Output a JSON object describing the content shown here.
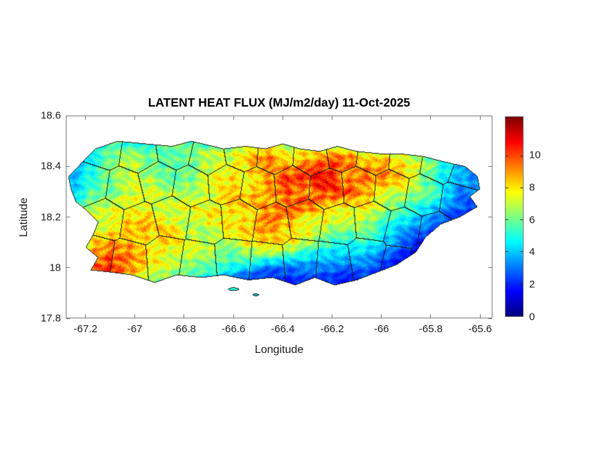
{
  "chart_data": {
    "type": "heatmap",
    "title": "LATENT HEAT FLUX (MJ/m2/day) 11-Oct-2025",
    "xlabel": "Longitude",
    "ylabel": "Latitude",
    "xlim": [
      -67.28,
      -65.55
    ],
    "ylim": [
      17.8,
      18.6
    ],
    "x_ticks": [
      -67.2,
      -67.0,
      -66.8,
      -66.6,
      -66.4,
      -66.2,
      -66.0,
      -65.8,
      -65.6
    ],
    "x_tick_labels": [
      "-67.2",
      "-67",
      "-66.8",
      "-66.6",
      "-66.4",
      "-66.2",
      "-66",
      "-65.8",
      "-65.6"
    ],
    "y_ticks": [
      18.6,
      18.4,
      18.2,
      18.0,
      17.8
    ],
    "y_tick_labels": [
      "18.6",
      "18.4",
      "18.2",
      "18",
      "17.8"
    ],
    "colormap": "jet",
    "colorbar": {
      "range": [
        0,
        12.4
      ],
      "ticks": [
        0,
        2,
        4,
        6,
        8,
        10
      ],
      "tick_labels": [
        "0",
        "2",
        "4",
        "6",
        "8",
        "10"
      ]
    },
    "grid": {
      "lon_min": -67.25,
      "lon_max": -65.6,
      "lat_min": 17.95,
      "lat_max": 18.5,
      "ncols": 22,
      "nrows": 12,
      "values": [
        [
          4,
          5,
          5,
          5,
          5,
          6,
          5,
          5,
          6,
          6,
          6,
          6,
          6,
          5,
          5,
          5,
          5,
          5,
          4,
          4,
          4,
          4
        ],
        [
          4,
          5,
          6,
          6,
          6,
          6,
          6,
          7,
          7,
          8,
          9,
          8,
          8,
          8,
          9,
          8,
          8,
          7,
          6,
          5,
          4,
          3
        ],
        [
          4,
          5,
          6,
          7,
          6,
          6,
          6,
          7,
          7,
          8,
          10,
          9,
          9,
          10,
          10,
          9,
          9,
          8,
          7,
          5,
          4,
          3
        ],
        [
          4,
          5,
          6,
          7,
          7,
          6,
          6,
          7,
          8,
          8,
          9,
          10,
          10,
          11,
          9,
          10,
          9,
          8,
          6,
          5,
          4,
          3
        ],
        [
          4,
          6,
          6,
          7,
          7,
          7,
          7,
          7,
          8,
          8,
          9,
          10,
          9,
          10,
          10,
          9,
          8,
          7,
          6,
          5,
          3,
          4
        ],
        [
          5,
          6,
          7,
          8,
          7,
          7,
          8,
          7,
          8,
          9,
          9,
          9,
          10,
          9,
          8,
          8,
          7,
          6,
          5,
          4,
          3,
          2
        ],
        [
          6,
          7,
          8,
          8,
          8,
          7,
          7,
          8,
          8,
          8,
          9,
          9,
          8,
          8,
          7,
          7,
          6,
          5,
          4,
          3,
          2,
          2
        ],
        [
          5,
          7,
          8,
          9,
          8,
          8,
          7,
          7,
          8,
          8,
          9,
          8,
          8,
          7,
          6,
          6,
          5,
          4,
          3,
          2,
          2,
          2
        ],
        [
          6,
          8,
          9,
          9,
          8,
          8,
          7,
          7,
          7,
          8,
          8,
          8,
          7,
          6,
          5,
          5,
          4,
          3,
          2,
          1,
          1,
          2
        ],
        [
          7,
          9,
          10,
          9,
          8,
          7,
          7,
          7,
          6,
          6,
          6,
          6,
          5,
          4,
          4,
          4,
          3,
          2,
          1,
          1,
          1,
          2
        ],
        [
          8,
          10,
          10,
          9,
          8,
          7,
          6,
          6,
          5,
          4,
          3,
          3,
          3,
          3,
          3,
          3,
          2,
          1,
          1,
          1,
          1,
          2
        ],
        [
          7,
          9,
          9,
          8,
          7,
          6,
          5,
          4,
          3,
          2,
          2,
          2,
          2,
          2,
          2,
          2,
          2,
          1,
          1,
          1,
          1,
          1
        ]
      ]
    },
    "island_outline": [
      [
        -67.16,
        18.47
      ],
      [
        -67.07,
        18.5
      ],
      [
        -66.96,
        18.49
      ],
      [
        -66.85,
        18.48
      ],
      [
        -66.77,
        18.5
      ],
      [
        -66.64,
        18.47
      ],
      [
        -66.55,
        18.48
      ],
      [
        -66.47,
        18.47
      ],
      [
        -66.4,
        18.49
      ],
      [
        -66.33,
        18.47
      ],
      [
        -66.25,
        18.46
      ],
      [
        -66.18,
        18.48
      ],
      [
        -66.1,
        18.46
      ],
      [
        -66.0,
        18.45
      ],
      [
        -65.92,
        18.45
      ],
      [
        -65.83,
        18.44
      ],
      [
        -65.75,
        18.42
      ],
      [
        -65.66,
        18.4
      ],
      [
        -65.61,
        18.36
      ],
      [
        -65.6,
        18.31
      ],
      [
        -65.64,
        18.28
      ],
      [
        -65.61,
        18.24
      ],
      [
        -65.68,
        18.2
      ],
      [
        -65.76,
        18.17
      ],
      [
        -65.82,
        18.12
      ],
      [
        -65.86,
        18.06
      ],
      [
        -65.94,
        18.01
      ],
      [
        -66.02,
        17.98
      ],
      [
        -66.1,
        17.95
      ],
      [
        -66.19,
        17.93
      ],
      [
        -66.27,
        17.96
      ],
      [
        -66.35,
        17.93
      ],
      [
        -66.44,
        17.96
      ],
      [
        -66.54,
        17.95
      ],
      [
        -66.64,
        17.97
      ],
      [
        -66.73,
        17.96
      ],
      [
        -66.83,
        17.97
      ],
      [
        -66.92,
        17.94
      ],
      [
        -67.01,
        17.97
      ],
      [
        -67.09,
        17.98
      ],
      [
        -67.18,
        17.99
      ],
      [
        -67.15,
        18.04
      ],
      [
        -67.2,
        18.08
      ],
      [
        -67.17,
        18.13
      ],
      [
        -67.15,
        18.18
      ],
      [
        -67.19,
        18.22
      ],
      [
        -67.24,
        18.26
      ],
      [
        -67.26,
        18.31
      ],
      [
        -67.27,
        18.36
      ],
      [
        -67.23,
        18.4
      ],
      [
        -67.19,
        18.44
      ]
    ],
    "islets": [
      {
        "lon": -66.6,
        "lat": 17.915,
        "rx": 0.022,
        "ry": 0.007,
        "value": 5
      },
      {
        "lon": -66.51,
        "lat": 17.893,
        "rx": 0.013,
        "ry": 0.005,
        "value": 4
      }
    ],
    "municipality_seeds": [
      [
        -67.13,
        18.47
      ],
      [
        -66.98,
        18.45
      ],
      [
        -66.84,
        18.47
      ],
      [
        -66.7,
        18.44
      ],
      [
        -66.57,
        18.46
      ],
      [
        -66.43,
        18.45
      ],
      [
        -66.28,
        18.44
      ],
      [
        -66.16,
        18.46
      ],
      [
        -66.03,
        18.44
      ],
      [
        -65.9,
        18.43
      ],
      [
        -65.77,
        18.41
      ],
      [
        -65.65,
        18.37
      ],
      [
        -67.18,
        18.33
      ],
      [
        -67.04,
        18.31
      ],
      [
        -66.91,
        18.34
      ],
      [
        -66.77,
        18.32
      ],
      [
        -66.63,
        18.33
      ],
      [
        -66.5,
        18.31
      ],
      [
        -66.36,
        18.32
      ],
      [
        -66.22,
        18.31
      ],
      [
        -66.09,
        18.32
      ],
      [
        -65.96,
        18.31
      ],
      [
        -65.83,
        18.29
      ],
      [
        -65.68,
        18.27
      ],
      [
        -67.12,
        18.19
      ],
      [
        -66.98,
        18.17
      ],
      [
        -66.85,
        18.2
      ],
      [
        -66.71,
        18.18
      ],
      [
        -66.58,
        18.19
      ],
      [
        -66.44,
        18.17
      ],
      [
        -66.31,
        18.19
      ],
      [
        -66.17,
        18.17
      ],
      [
        -66.04,
        18.18
      ],
      [
        -65.91,
        18.15
      ],
      [
        -65.78,
        18.13
      ],
      [
        -67.16,
        18.05
      ],
      [
        -67.02,
        18.03
      ],
      [
        -66.88,
        18.04
      ],
      [
        -66.74,
        18.02
      ],
      [
        -66.6,
        18.03
      ],
      [
        -66.46,
        18.02
      ],
      [
        -66.33,
        18.03
      ],
      [
        -66.19,
        18.02
      ],
      [
        -66.06,
        18.04
      ],
      [
        -65.93,
        18.01
      ],
      [
        -65.8,
        18.04
      ]
    ]
  },
  "colors": {
    "background": "#ffffff",
    "axis": "#777777",
    "tick_text": "#1a1a1a",
    "title_text": "#000000",
    "boundary": "#141414"
  }
}
